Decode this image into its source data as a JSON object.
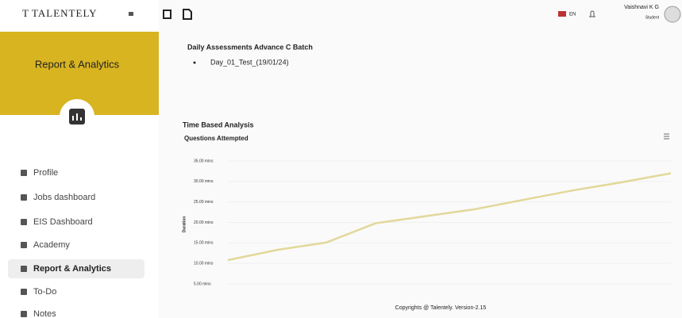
{
  "header": {
    "logo": "TALENTELY",
    "language": "EN",
    "user_name": "Vaishnavi K G",
    "user_role": "Student"
  },
  "sidebar": {
    "section_title": "Report & Analytics",
    "menu": [
      "Profile",
      "Jobs dashboard",
      "EIS Dashboard",
      "Academy",
      "Report & Analytics",
      "To-Do",
      "Notes"
    ],
    "active": 4
  },
  "main": {
    "batch_title": "Daily Assessments Advance C Batch",
    "test_name": "Day_01_Test_(19/01/24)",
    "section_title": "Time Based Analysis"
  },
  "chart_data": {
    "type": "line",
    "title": "Questions Attempted",
    "y_label": "Duration",
    "categories": [
      null,
      null,
      null,
      null,
      null,
      null,
      null,
      null,
      null,
      null
    ],
    "series": [
      {
        "name": "Duration",
        "color": "#e2d899",
        "values": [
          10.8,
          13.3,
          15.1,
          19.8,
          21.5,
          23.2,
          25.5,
          27.8,
          29.8,
          32.0
        ]
      }
    ],
    "ylim": [
      5,
      35
    ],
    "yticks": [
      {
        "value": 5,
        "label": "5.00 mins"
      },
      {
        "value": 10,
        "label": "10.00 mins"
      },
      {
        "value": 15,
        "label": "15.00 mins"
      },
      {
        "value": 20,
        "label": "20.00 mins"
      },
      {
        "value": 25,
        "label": "25.00 mins"
      },
      {
        "value": 30,
        "label": "30.00 mins"
      },
      {
        "value": 35,
        "label": "35.00 mins"
      }
    ]
  },
  "footer": {
    "copyright": "Copyrights @ Talentely. Version-2.15"
  }
}
